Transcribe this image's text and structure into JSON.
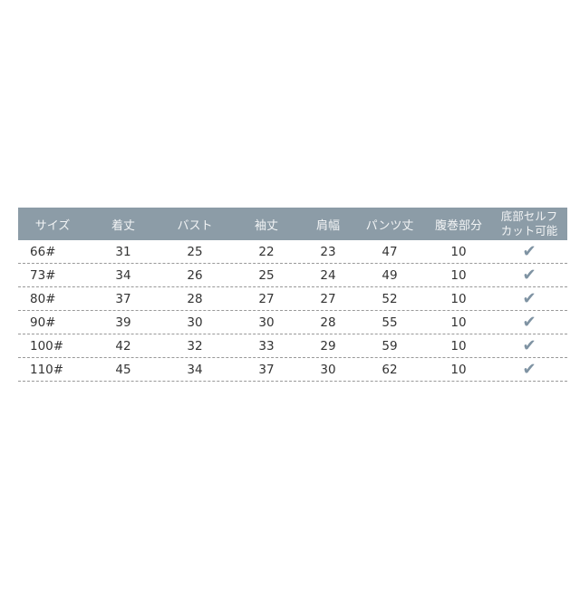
{
  "headers": [
    "サイズ",
    "着丈",
    "バスト",
    "袖丈",
    "肩幅",
    "パンツ丈",
    "腹巻部分",
    "底部セルフカット可能"
  ],
  "header_last_lines": [
    "底部セルフ",
    "カット可能"
  ],
  "rows": [
    [
      "66#",
      "31",
      "25",
      "22",
      "23",
      "47",
      "10"
    ],
    [
      "73#",
      "34",
      "26",
      "25",
      "24",
      "49",
      "10"
    ],
    [
      "80#",
      "37",
      "28",
      "27",
      "27",
      "52",
      "10"
    ],
    [
      "90#",
      "39",
      "30",
      "30",
      "28",
      "55",
      "10"
    ],
    [
      "100#",
      "42",
      "32",
      "33",
      "29",
      "59",
      "10"
    ],
    [
      "110#",
      "45",
      "34",
      "37",
      "30",
      "62",
      "10"
    ]
  ],
  "check_icon": "checkmark-icon",
  "colors": {
    "header_bg": "#8c9ca7",
    "check": "#7f93a3"
  }
}
